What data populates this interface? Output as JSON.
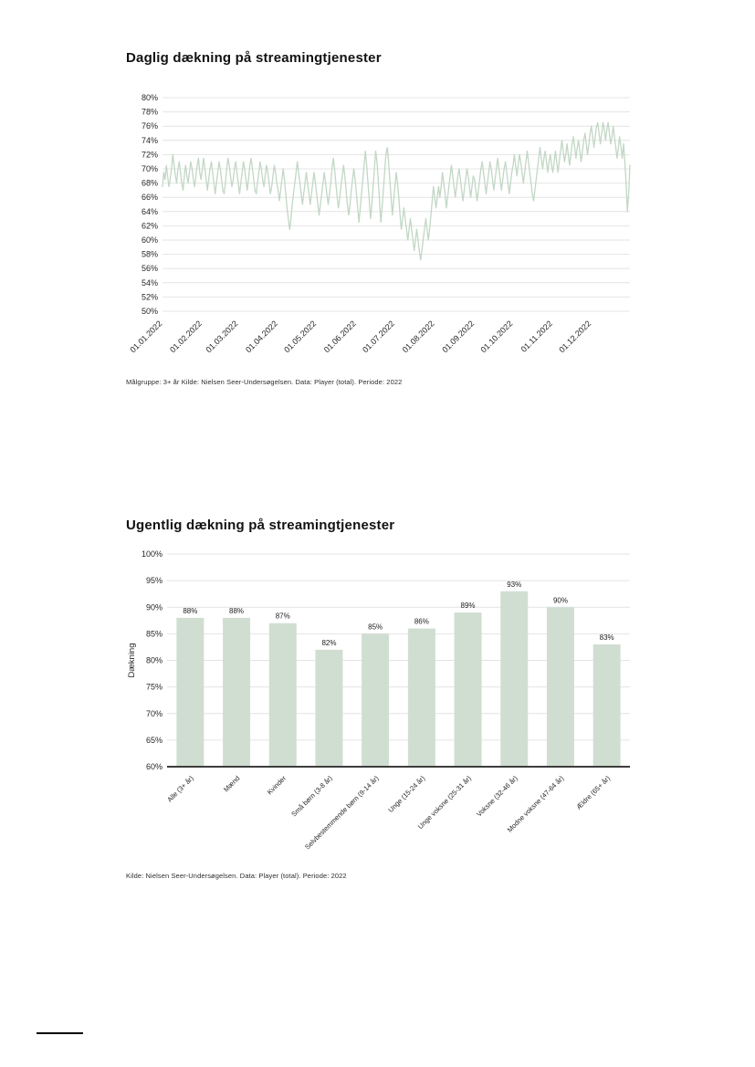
{
  "chart_data": [
    {
      "type": "line",
      "title": "Daglig dækning på streamingtjenester",
      "footnote": "Målgruppe: 3+ år Kilde: Nielsen Seer-Undersøgelsen. Data: Player (total). Periode: 2022",
      "line_color": "#c2d7c5",
      "grid": true,
      "grid_color": "#e4e4e4",
      "ylim": [
        50,
        80
      ],
      "y_ticks": [
        80,
        78,
        76,
        74,
        72,
        70,
        68,
        66,
        64,
        62,
        60,
        58,
        56,
        54,
        52,
        50
      ],
      "y_tick_labels": [
        "80%",
        "78%",
        "76%",
        "74%",
        "72%",
        "70%",
        "68%",
        "66%",
        "64%",
        "62%",
        "60%",
        "58%",
        "56%",
        "54%",
        "52%",
        "50%"
      ],
      "x_unit": "day of 2022",
      "x_tick_labels": [
        "01.01.2022",
        "01.02.2022",
        "01.03.2022",
        "01.04.2022",
        "01.05.2022",
        "01.06.2022",
        "01.07.2022",
        "01.08.2022",
        "01.09.2022",
        "01.10.2022",
        "01.11.2022",
        "01.12.2022"
      ],
      "x_tick_positions": [
        0,
        31,
        59,
        90,
        120,
        151,
        181,
        212,
        243,
        273,
        304,
        334
      ],
      "values": [
        67.5,
        69.5,
        68.5,
        70.5,
        69,
        67.5,
        68.5,
        70,
        72,
        70.5,
        69,
        68,
        70,
        71,
        69.5,
        68,
        67,
        69,
        70.5,
        69,
        68,
        69.5,
        71,
        70,
        68.5,
        67.5,
        69,
        70.5,
        71.5,
        69.5,
        68.5,
        70,
        71.5,
        70,
        68.5,
        67,
        68.5,
        70,
        71,
        69.5,
        68,
        66.5,
        68,
        69.5,
        71,
        70,
        68.5,
        67,
        66.5,
        68,
        70,
        71.5,
        70.5,
        69,
        67.5,
        68.5,
        70,
        71,
        69.5,
        68,
        66.5,
        68,
        69.5,
        71,
        70,
        68.5,
        67,
        68.5,
        70.5,
        71.5,
        70,
        68.5,
        67,
        66.5,
        68,
        69.5,
        71,
        70,
        68.5,
        67.5,
        69,
        70.5,
        69.5,
        68,
        66.5,
        67.5,
        69,
        70.5,
        69.5,
        68,
        67,
        65.5,
        67,
        68.5,
        70,
        68.5,
        66.5,
        64.5,
        63,
        61.5,
        63,
        65,
        66.5,
        68,
        69.5,
        71,
        69.5,
        68,
        66.5,
        65,
        66.5,
        68,
        69.5,
        68,
        66.5,
        65,
        66.5,
        68,
        69.5,
        68,
        66.5,
        65,
        63.5,
        65,
        66.5,
        68,
        69.5,
        68,
        66.5,
        65,
        66.5,
        68,
        70,
        71.5,
        70,
        68,
        66,
        64.5,
        66,
        67.5,
        69,
        70.5,
        69,
        67,
        65,
        63.5,
        65,
        67,
        68.5,
        70,
        68.5,
        66.5,
        64.5,
        62.5,
        64.5,
        66.5,
        68.5,
        70.5,
        72.5,
        70.5,
        68,
        65.5,
        63,
        65,
        67.5,
        70,
        72.5,
        71,
        68.5,
        65.5,
        62.5,
        64.5,
        67,
        69.5,
        72,
        73,
        71,
        68.5,
        66,
        63.5,
        65.5,
        67.5,
        69.5,
        68,
        66,
        63.5,
        61.5,
        63,
        64.5,
        63,
        61.5,
        60,
        61.5,
        63,
        61.5,
        60,
        58.5,
        60,
        61.5,
        60,
        58.5,
        57.2,
        58.5,
        60,
        61.5,
        63,
        61.5,
        60,
        61.5,
        63.5,
        65.5,
        67.5,
        66,
        64.5,
        66,
        67.5,
        66,
        67.5,
        69.5,
        68,
        66.5,
        64.5,
        66,
        67.5,
        69,
        70.5,
        69,
        67.5,
        66,
        67.5,
        69,
        70,
        68.5,
        67,
        65.5,
        67,
        68.5,
        70,
        69,
        67.5,
        66,
        67.5,
        69,
        68.5,
        67,
        65.5,
        67,
        68.5,
        70,
        71,
        69.5,
        68,
        66.5,
        68,
        69.5,
        71,
        70,
        68.5,
        67,
        68.5,
        70,
        71.5,
        70,
        68.5,
        67,
        68.5,
        70,
        71,
        69.5,
        68,
        66.5,
        68,
        69.5,
        70.5,
        72,
        70.5,
        69,
        70.5,
        72,
        71,
        69.5,
        68,
        69.5,
        71,
        72.5,
        71,
        69.5,
        68,
        66.5,
        65.5,
        67,
        68.5,
        70,
        71.5,
        73,
        71.5,
        70,
        71.5,
        72.5,
        71,
        69.5,
        71,
        72,
        70.5,
        69.5,
        71,
        72.5,
        71,
        69.5,
        71,
        72.5,
        74,
        72.5,
        71,
        72,
        73.5,
        72,
        70.5,
        72,
        73.5,
        74.5,
        73,
        71.5,
        73,
        74,
        72.5,
        71,
        72.5,
        74,
        75,
        73.5,
        72,
        73.5,
        75,
        76,
        74.5,
        73,
        74.5,
        76,
        76.5,
        75,
        73.5,
        75,
        76.5,
        75.5,
        74,
        75.5,
        76.5,
        75,
        73.5,
        74.5,
        76,
        74.5,
        73,
        71.5,
        73,
        74.5,
        73,
        71.5,
        73.5,
        71,
        68,
        64,
        66.5,
        70.5
      ]
    },
    {
      "type": "bar",
      "title": "Ugentlig dækning på streamingtjenester",
      "footnote": "Kilde: Nielsen Seer-Undersøgelsen. Data: Player (total). Periode: 2022",
      "ylabel": "Dækning",
      "bar_color": "#d0ded2",
      "grid": true,
      "grid_color": "#e4e4e4",
      "axis_color": "#3d3d3d",
      "ylim": [
        60,
        100
      ],
      "y_ticks": [
        100,
        95,
        90,
        85,
        80,
        75,
        70,
        65,
        60
      ],
      "y_tick_labels": [
        "100%",
        "95%",
        "90%",
        "85%",
        "80%",
        "75%",
        "70%",
        "65%",
        "60%"
      ],
      "categories": [
        "Alle (3+ år)",
        "Mænd",
        "Kvinder",
        "Små børn (3-8 år)",
        "Selvbestemmende børn (9-14 år)",
        "Unge (15-24 år)",
        "Unge voksne (25-31 år)",
        "Voksne (32-46 år)",
        "Modne voksne (47-64 år)",
        "Ældre (65+ år)"
      ],
      "values": [
        88,
        88,
        87,
        82,
        85,
        86,
        89,
        93,
        90,
        83
      ],
      "value_labels": [
        "88%",
        "88%",
        "87%",
        "82%",
        "85%",
        "86%",
        "89%",
        "93%",
        "90%",
        "83%"
      ]
    }
  ]
}
